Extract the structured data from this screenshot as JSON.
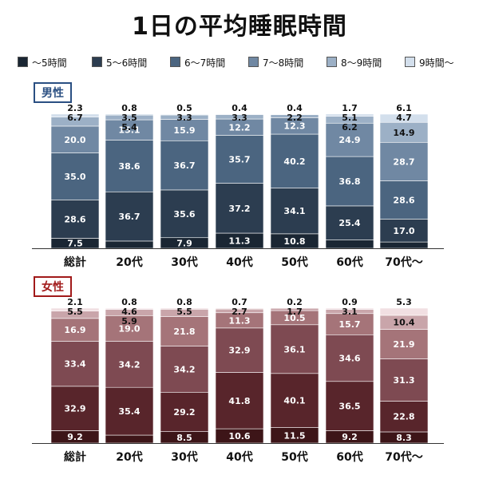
{
  "title": "1日の平均睡眠時間",
  "legend": [
    {
      "label": "〜5時間"
    },
    {
      "label": "5〜6時間"
    },
    {
      "label": "6〜7時間"
    },
    {
      "label": "7〜8時間"
    },
    {
      "label": "8〜9時間"
    },
    {
      "label": "9時間〜"
    }
  ],
  "colors": {
    "male": [
      "#1a2633",
      "#2c3d50",
      "#4b6580",
      "#7088a3",
      "#9cb0c6",
      "#d3dfec"
    ],
    "female": [
      "#3d1518",
      "#58252b",
      "#7e4a52",
      "#a57479",
      "#c9a5aa",
      "#f1dfe2"
    ],
    "male_label": "#2a4f82",
    "female_label": "#a11a1a"
  },
  "chart_data": [
    {
      "type": "bar",
      "stacked": true,
      "title": "男性",
      "categories": [
        "総計",
        "20代",
        "30代",
        "40代",
        "50代",
        "60代",
        "70代〜"
      ],
      "series": [
        {
          "name": "〜5時間",
          "values": [
            7.5,
            5.4,
            7.9,
            11.3,
            10.8,
            6.2,
            4.7
          ]
        },
        {
          "name": "5〜6時間",
          "values": [
            28.6,
            36.7,
            35.6,
            37.2,
            34.1,
            25.4,
            17.0
          ]
        },
        {
          "name": "6〜7時間",
          "values": [
            35.0,
            38.6,
            36.7,
            35.7,
            40.2,
            36.8,
            28.6
          ]
        },
        {
          "name": "7〜8時間",
          "values": [
            20.0,
            15.1,
            15.9,
            12.2,
            12.3,
            24.9,
            28.7
          ]
        },
        {
          "name": "8〜9時間",
          "values": [
            6.7,
            3.5,
            3.3,
            3.3,
            2.2,
            5.1,
            14.9
          ]
        },
        {
          "name": "9時間〜",
          "values": [
            2.3,
            0.8,
            0.5,
            0.4,
            0.4,
            1.7,
            6.1
          ]
        }
      ],
      "ylim": [
        0,
        100
      ]
    },
    {
      "type": "bar",
      "stacked": true,
      "title": "女性",
      "categories": [
        "総計",
        "20代",
        "30代",
        "40代",
        "50代",
        "60代",
        "70代〜"
      ],
      "series": [
        {
          "name": "〜5時間",
          "values": [
            9.2,
            5.9,
            8.5,
            10.6,
            11.5,
            9.2,
            8.3
          ]
        },
        {
          "name": "5〜6時間",
          "values": [
            32.9,
            35.4,
            29.2,
            41.8,
            40.1,
            36.5,
            22.8
          ]
        },
        {
          "name": "6〜7時間",
          "values": [
            33.4,
            34.2,
            34.2,
            32.9,
            36.1,
            34.6,
            31.3
          ]
        },
        {
          "name": "7〜8時間",
          "values": [
            16.9,
            19.0,
            21.8,
            11.3,
            10.5,
            15.7,
            21.9
          ]
        },
        {
          "name": "8〜9時間",
          "values": [
            5.5,
            4.6,
            5.5,
            2.7,
            1.7,
            3.1,
            10.4
          ]
        },
        {
          "name": "9時間〜",
          "values": [
            2.1,
            0.8,
            0.8,
            0.7,
            0.2,
            0.9,
            5.3
          ]
        }
      ],
      "ylim": [
        0,
        100
      ]
    }
  ]
}
